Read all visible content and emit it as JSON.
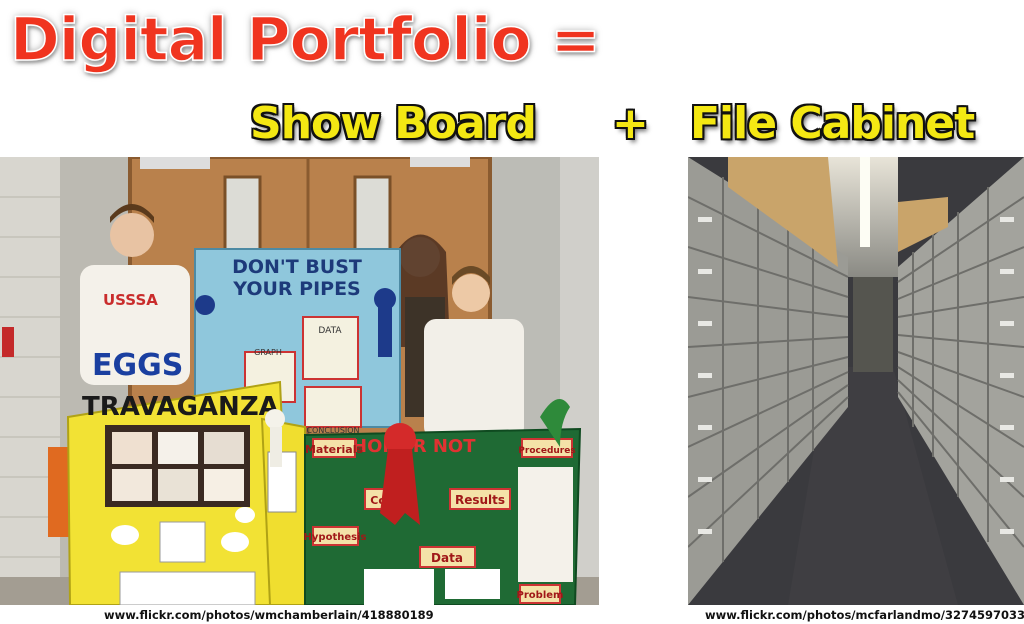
{
  "title": {
    "main": "Digital Portfolio =",
    "sub_left": "Show Board",
    "sub_plus": "+",
    "sub_right": "File Cabinet"
  },
  "photos": {
    "left": {
      "board_text": {
        "top_sign": [
          "DON'T BUST",
          "YOUR PIPES"
        ],
        "eggs_title_line1": "EGGS",
        "eggs_title_line2": "TRAVAGANZA",
        "data_label": "DATA",
        "graph_label": "GRAPH",
        "conclusion_label": "CONCLUSION",
        "honor_not": "HONOR NOT",
        "materials": "Materials",
        "hypothesis": "Hypothesis",
        "procedures": "Procedures",
        "results": "Results",
        "data": "Data",
        "problem": "Problem",
        "conclusion_green": "Con",
        "shirt_text": "USSSA"
      },
      "colors": {
        "board_yellow": "#f2e234",
        "board_green": "#1f6a34",
        "board_blue": "#8fc7dc",
        "door": "#b9814c"
      }
    },
    "right": {
      "colors": {
        "cabinet": "#9b9b95",
        "floor": "#3a3a3e"
      }
    }
  },
  "captions": {
    "left": "www.flickr.com/photos/wmchamberlain/418880189",
    "right": "www.flickr.com/photos/mcfarlandmo/3274597033"
  }
}
